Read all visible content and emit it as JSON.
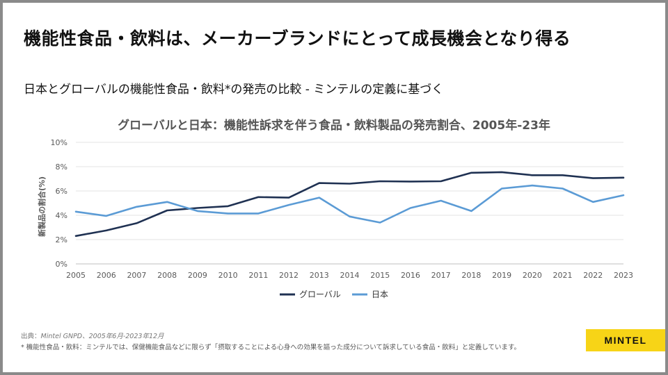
{
  "slide": {
    "title": "機能性食品・飲料は、メーカーブランドにとって成長機会となり得る",
    "subtitle": "日本とグローバルの機能性食品・飲料*の発売の比較 - ミンテルの定義に基づく",
    "source_prefix": "出典：",
    "source_italic": "Mintel GNPD、2005年6月-2023年12月",
    "footnote": "* 機能性食品・飲料：ミンテルでは、保健機能食品などに限らず「摂取することによる心身への効果を謳った成分について訴求している食品・飲料」と定義しています。",
    "logo_text": "MINTEL"
  },
  "chart_data": {
    "type": "line",
    "title": "グローバルと日本：機能性訴求を伴う食品・飲料製品の発売割合、2005年-23年",
    "ylabel": "新製品の割合(%)",
    "xlabel": "",
    "x": [
      "2005",
      "2006",
      "2007",
      "2008",
      "2009",
      "2010",
      "2011",
      "2012",
      "2013",
      "2014",
      "2015",
      "2016",
      "2017",
      "2018",
      "2019",
      "2020",
      "2021",
      "2022",
      "2023"
    ],
    "yticks": [
      "0%",
      "2%",
      "4%",
      "6%",
      "8%",
      "10%"
    ],
    "ylim": [
      0,
      10
    ],
    "grid": true,
    "legend": "bottom",
    "series": [
      {
        "name": "グローバル",
        "color": "#1f3152",
        "values": [
          2.3,
          2.75,
          3.35,
          4.4,
          4.6,
          4.75,
          5.5,
          5.45,
          6.65,
          6.6,
          6.8,
          6.78,
          6.8,
          7.5,
          7.55,
          7.3,
          7.3,
          7.05,
          7.1
        ]
      },
      {
        "name": "日本",
        "color": "#5b9bd5",
        "values": [
          4.3,
          3.95,
          4.7,
          5.1,
          4.35,
          4.15,
          4.15,
          4.85,
          5.45,
          3.9,
          3.4,
          4.6,
          5.2,
          4.35,
          6.2,
          6.45,
          6.2,
          5.1,
          5.65
        ]
      }
    ]
  }
}
